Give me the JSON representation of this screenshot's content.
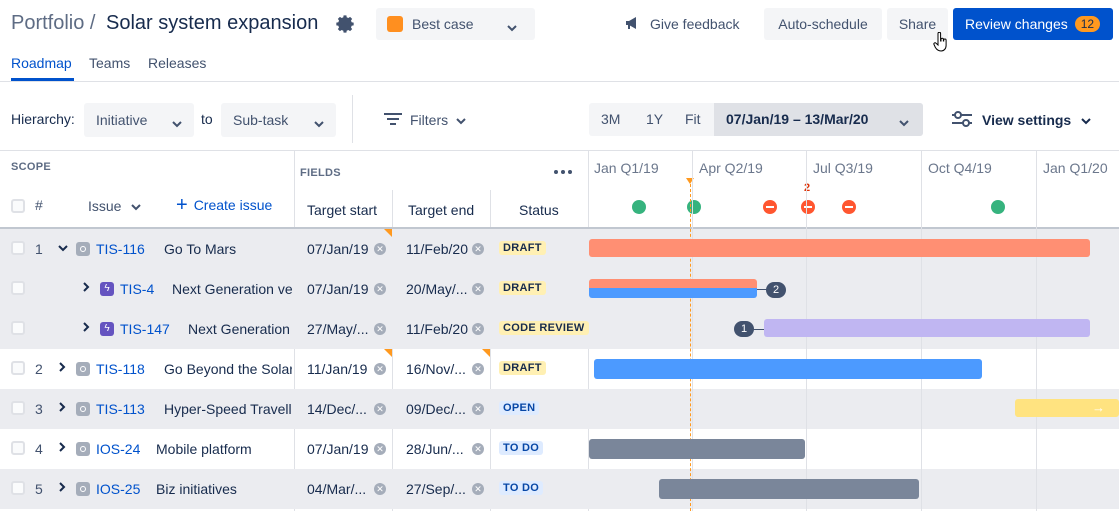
{
  "header": {
    "breadcrumb": "Portfolio /",
    "title": "Solar system expansion",
    "scenario": "Best case",
    "give_feedback": "Give feedback",
    "auto_schedule": "Auto-schedule",
    "share": "Share",
    "review_changes": "Review changes",
    "review_count": "12"
  },
  "tabs": [
    "Roadmap",
    "Teams",
    "Releases"
  ],
  "toolbar": {
    "hierarchy_label": "Hierarchy:",
    "hierarchy_from": "Initiative",
    "to_label": "to",
    "hierarchy_to": "Sub-task",
    "filters": "Filters",
    "range_3m": "3M",
    "range_1y": "1Y",
    "range_fit": "Fit",
    "date_range": "07/Jan/19 – 13/Mar/20",
    "view_settings": "View settings"
  },
  "columns": {
    "scope": "SCOPE",
    "fields": "FIELDS",
    "hash": "#",
    "issue": "Issue",
    "create_issue": "Create issue",
    "target_start": "Target start",
    "target_end": "Target end",
    "status": "Status"
  },
  "timeline": {
    "quarters": [
      "Jan Q1/19",
      "Apr Q2/19",
      "Jul Q3/19",
      "Oct Q4/19",
      "Jan Q1/20"
    ],
    "marker_count": "2"
  },
  "rows": [
    {
      "num": "1",
      "key": "TIS-116",
      "summary": "Go To Mars",
      "start": "07/Jan/19",
      "end": "11/Feb/20",
      "status": "DRAFT"
    },
    {
      "num": "",
      "key": "TIS-4",
      "summary": "Next Generation ve",
      "start": "07/Jan/19",
      "end": "20/May/...",
      "status": "DRAFT",
      "count": "2"
    },
    {
      "num": "",
      "key": "TIS-147",
      "summary": "Next Generation v",
      "start": "27/May/...",
      "end": "11/Feb/20",
      "status": "CODE REVIEW",
      "count": "1"
    },
    {
      "num": "2",
      "key": "TIS-118",
      "summary": "Go Beyond the Solar",
      "start": "11/Jan/19",
      "end": "16/Nov/...",
      "status": "DRAFT"
    },
    {
      "num": "3",
      "key": "TIS-113",
      "summary": "Hyper-Speed Travelli",
      "start": "14/Dec/...",
      "end": "09/Dec/...",
      "status": "OPEN"
    },
    {
      "num": "4",
      "key": "IOS-24",
      "summary": "Mobile platform",
      "start": "07/Jan/19",
      "end": "28/Jun/...",
      "status": "TO DO"
    },
    {
      "num": "5",
      "key": "IOS-25",
      "summary": "Biz initiatives",
      "start": "04/Mar/...",
      "end": "27/Sep/...",
      "status": "TO DO"
    }
  ],
  "colors": {
    "primary": "#0052cc",
    "bar_orange": "#ff8f73",
    "bar_blue": "#4c9aff",
    "bar_purple": "#c0b6f2",
    "bar_yellow": "#ffe380",
    "bar_grey": "#7a869a"
  }
}
